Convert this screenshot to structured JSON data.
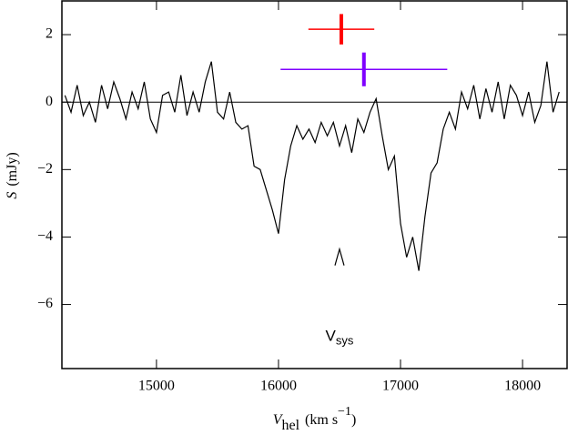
{
  "chart_data": {
    "type": "line",
    "xlabel": {
      "symbol": "V",
      "sub": "hel",
      "unit": "(km s",
      "sup": "−1",
      "unit_end": ")"
    },
    "ylabel": {
      "symbol": "S",
      "unit": "(mJy)"
    },
    "xlim": [
      14225,
      18365
    ],
    "ylim": [
      -7.9,
      3.0
    ],
    "xticks": [
      15000,
      16000,
      17000,
      18000
    ],
    "yticks": [
      {
        "value": 2,
        "label": "2"
      },
      {
        "value": 0,
        "label": "0"
      },
      {
        "value": -2,
        "label": "−2"
      },
      {
        "value": -4,
        "label": "−4"
      },
      {
        "value": -6,
        "label": "−6"
      }
    ],
    "zero_line": true,
    "x": [
      14250,
      14300,
      14350,
      14400,
      14450,
      14500,
      14550,
      14600,
      14650,
      14700,
      14750,
      14800,
      14850,
      14900,
      14950,
      15000,
      15050,
      15100,
      15150,
      15200,
      15250,
      15300,
      15350,
      15400,
      15450,
      15500,
      15550,
      15600,
      15650,
      15700,
      15750,
      15800,
      15850,
      15900,
      15950,
      16000,
      16050,
      16100,
      16150,
      16200,
      16250,
      16300,
      16350,
      16400,
      16450,
      16500,
      16550,
      16600,
      16650,
      16700,
      16750,
      16800,
      16850,
      16900,
      16950,
      17000,
      17050,
      17100,
      17150,
      17200,
      17250,
      17300,
      17350,
      17400,
      17450,
      17500,
      17550,
      17600,
      17650,
      17700,
      17750,
      17800,
      17850,
      17900,
      17950,
      18000,
      18050,
      18100,
      18150,
      18200,
      18250,
      18300
    ],
    "series": [
      {
        "color": "#000000",
        "values": [
          0.2,
          -0.3,
          0.5,
          -0.4,
          0.0,
          -0.6,
          0.5,
          -0.2,
          0.6,
          0.1,
          -0.5,
          0.3,
          -0.2,
          0.6,
          -0.5,
          -0.9,
          0.2,
          0.3,
          -0.3,
          0.8,
          -0.4,
          0.3,
          -0.3,
          0.6,
          1.2,
          -0.3,
          -0.5,
          0.3,
          -0.6,
          -0.8,
          -0.7,
          -1.9,
          -2.0,
          -2.6,
          -3.2,
          -3.9,
          -2.3,
          -1.3,
          -0.7,
          -1.1,
          -0.8,
          -1.2,
          -0.6,
          -1.0,
          -0.6,
          -1.3,
          -0.7,
          -1.5,
          -0.5,
          -0.9,
          -0.3,
          0.1,
          -1.0,
          -2.0,
          -1.6,
          -3.6,
          -4.6,
          -4.0,
          -5.0,
          -3.4,
          -2.1,
          -1.8,
          -0.8,
          -0.3,
          -0.8,
          0.3,
          -0.2,
          0.5,
          -0.5,
          0.4,
          -0.3,
          0.6,
          -0.5,
          0.5,
          0.2,
          -0.4,
          0.3,
          -0.6,
          -0.1,
          1.2,
          -0.3,
          0.3
        ]
      }
    ],
    "error_crosses": [
      {
        "color": "#ff0000",
        "x": 16515,
        "y": 2.16,
        "xerr": 270,
        "yerr": 0.45
      },
      {
        "color": "#7f00ff",
        "x": 16700,
        "y": 0.97,
        "xerr": 683,
        "yerr": 0.5
      }
    ],
    "vsys": {
      "x": 16500,
      "y": -4.6,
      "label": "V",
      "label_sub": "sys"
    }
  }
}
